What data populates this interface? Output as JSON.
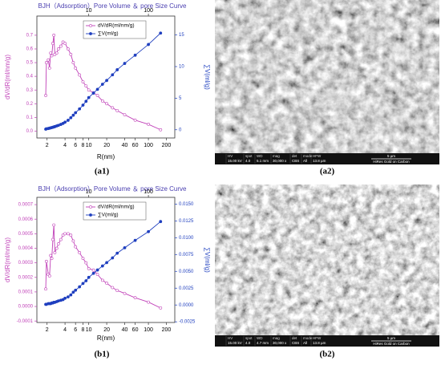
{
  "chart_data": [
    {
      "type": "line",
      "title": "BJH（Adsorption）Pore Volume ＆ pore Size Curve",
      "caption": "(a1)",
      "xlabel": "R(nm)",
      "ylabel": "dV/dR(ml/nm/g)",
      "y2label": "∑V(ml/g)",
      "xscale": "log",
      "legend": "upper center",
      "xlim": [
        1.35,
        277
      ],
      "xticks": [
        2,
        4,
        6,
        8,
        10,
        20,
        40,
        60,
        100,
        200
      ],
      "x2ticks": [
        10,
        100
      ],
      "ylim": [
        -0.05,
        0.84
      ],
      "yticks": [
        {
          "value": 0,
          "label": "0.0"
        },
        0.1,
        0.2,
        0.3,
        0.4,
        0.5,
        0.6,
        0.7
      ],
      "y2lim": [
        -1.3,
        18
      ],
      "y2ticks": [
        0,
        5,
        10,
        15
      ],
      "x": [
        1.9,
        1.95,
        2.1,
        2.2,
        2.3,
        2.4,
        2.5,
        2.6,
        2.7,
        2.9,
        3.1,
        3.4,
        3.7,
        4.0,
        4.5,
        5,
        5.5,
        6,
        7,
        8,
        9,
        10,
        12,
        14,
        17,
        20,
        25,
        30,
        40,
        60,
        100,
        160
      ],
      "series": [
        {
          "name": "dV/dR(ml/nm/g)",
          "color": "#c040b8",
          "marker": "open",
          "values": [
            0.26,
            0.5,
            0.52,
            0.46,
            0.57,
            0.55,
            0.64,
            0.7,
            0.56,
            0.57,
            0.6,
            0.62,
            0.65,
            0.64,
            0.6,
            0.56,
            0.5,
            0.46,
            0.41,
            0.36,
            0.33,
            0.3,
            0.28,
            0.26,
            0.22,
            0.2,
            0.17,
            0.15,
            0.12,
            0.08,
            0.05,
            0.01
          ]
        },
        {
          "name": "∑V(ml/g)",
          "color": "#1f3fbf",
          "marker": "filled",
          "axis": "y2",
          "values": [
            0.1,
            0.15,
            0.2,
            0.25,
            0.3,
            0.35,
            0.4,
            0.45,
            0.5,
            0.6,
            0.7,
            0.85,
            1.0,
            1.2,
            1.5,
            1.9,
            2.3,
            2.7,
            3.3,
            3.9,
            4.5,
            5.1,
            5.8,
            6.4,
            7.2,
            7.8,
            8.7,
            9.5,
            10.5,
            11.8,
            13.5,
            15.3
          ]
        }
      ]
    },
    {
      "type": "line",
      "title": "BJH（Adsorption）Pore Volume ＆ pore Size Curve",
      "caption": "(b1)",
      "xlabel": "R(nm)",
      "ylabel": "dV/dR(ml/nm/g)",
      "y2label": "∑V(ml/g)",
      "xscale": "log",
      "legend": "upper center",
      "xlim": [
        1.35,
        277
      ],
      "xticks": [
        2,
        4,
        6,
        8,
        10,
        20,
        40,
        60,
        100,
        200
      ],
      "x2ticks": [
        10,
        100
      ],
      "ylim": [
        -0.00011,
        0.00075
      ],
      "yticks": [
        {
          "value": -0.0001,
          "label": "-0.0001"
        },
        {
          "value": 0,
          "label": "0.0000"
        },
        {
          "value": 0.0001,
          "label": "0.0001"
        },
        {
          "value": 0.0002,
          "label": "0.0002"
        },
        {
          "value": 0.0003,
          "label": "0.0003"
        },
        {
          "value": 0.0004,
          "label": "0.0004"
        },
        {
          "value": 0.0005,
          "label": "0.0005"
        },
        {
          "value": 0.0006,
          "label": "0.0006"
        },
        {
          "value": 0.0007,
          "label": "0.0007"
        }
      ],
      "y2lim": [
        -0.0026,
        0.016
      ],
      "y2ticks": [
        {
          "value": -0.0025,
          "label": "-0.0025"
        },
        {
          "value": 0,
          "label": "0.0000"
        },
        {
          "value": 0.0025,
          "label": "0.0025"
        },
        {
          "value": 0.005,
          "label": "0.0050"
        },
        {
          "value": 0.0075,
          "label": "0.0075"
        },
        {
          "value": 0.01,
          "label": "0.0100"
        },
        {
          "value": 0.0125,
          "label": "0.0125"
        },
        {
          "value": 0.015,
          "label": "0.0150"
        }
      ],
      "x": [
        1.9,
        1.95,
        2.1,
        2.2,
        2.3,
        2.4,
        2.5,
        2.6,
        2.7,
        2.9,
        3.1,
        3.4,
        3.7,
        4.0,
        4.5,
        5,
        5.5,
        6,
        7,
        8,
        9,
        10,
        12,
        14,
        17,
        20,
        25,
        30,
        40,
        60,
        100,
        160
      ],
      "series": [
        {
          "name": "dV/dR(ml/nm/g)",
          "color": "#c040b8",
          "marker": "open",
          "values": [
            0.00012,
            0.00031,
            0.00022,
            0.00021,
            0.00035,
            0.00033,
            0.00046,
            0.00056,
            0.00037,
            0.0004,
            0.00043,
            0.00046,
            0.00049,
            0.0005,
            0.0005,
            0.00049,
            0.00045,
            0.00041,
            0.00037,
            0.00033,
            0.0003,
            0.00026,
            0.00025,
            0.00022,
            0.00018,
            0.00016,
            0.00013,
            0.00011,
            9e-05,
            6e-05,
            3e-05,
            -1e-05
          ]
        },
        {
          "name": "∑V(ml/g)",
          "color": "#1f3fbf",
          "marker": "filled",
          "axis": "y2",
          "values": [
            0.0001,
            0.0001,
            0.0002,
            0.0002,
            0.0002,
            0.0003,
            0.0003,
            0.0004,
            0.0004,
            0.0005,
            0.0006,
            0.0007,
            0.0008,
            0.001,
            0.0012,
            0.0015,
            0.0019,
            0.0022,
            0.0027,
            0.0032,
            0.0036,
            0.0041,
            0.0047,
            0.0052,
            0.0058,
            0.0063,
            0.007,
            0.0077,
            0.0085,
            0.0096,
            0.0109,
            0.0124
          ]
        }
      ]
    }
  ],
  "images": [
    {
      "caption": "(a2)",
      "scale": "5 µm",
      "note": "HiRes Gold on Carbon",
      "info": [
        [
          "HV",
          "15.00 kV"
        ],
        [
          "spot",
          "4.0"
        ],
        [
          "WD",
          "5.1 mm"
        ],
        [
          "mag",
          "30,000 x"
        ],
        [
          "det",
          "CBS"
        ],
        [
          "mode",
          "All"
        ],
        [
          "HFW",
          "13.8 µm"
        ]
      ]
    },
    {
      "caption": "(b2)",
      "scale": "5 µm",
      "note": "HiRes Gold on Carbon",
      "info": [
        [
          "HV",
          "15.00 kV"
        ],
        [
          "spot",
          "4.0"
        ],
        [
          "WD",
          "4.7 mm"
        ],
        [
          "mag",
          "30,000 x"
        ],
        [
          "det",
          "CBS"
        ],
        [
          "mode",
          "All"
        ],
        [
          "HFW",
          "13.8 µm"
        ]
      ]
    }
  ]
}
